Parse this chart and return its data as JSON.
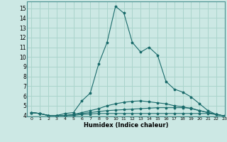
{
  "xlabel": "Humidex (Indice chaleur)",
  "ylabel": "",
  "bg_color": "#cce8e4",
  "grid_color": "#aad4cc",
  "line_color": "#1a6b6b",
  "xlim": [
    -0.5,
    23
  ],
  "ylim": [
    3.9,
    15.7
  ],
  "yticks": [
    4,
    5,
    6,
    7,
    8,
    9,
    10,
    11,
    12,
    13,
    14,
    15
  ],
  "xticks": [
    0,
    1,
    2,
    3,
    4,
    5,
    6,
    7,
    8,
    9,
    10,
    11,
    12,
    13,
    14,
    15,
    16,
    17,
    18,
    19,
    20,
    21,
    22,
    23
  ],
  "lines": [
    {
      "x": [
        0,
        1,
        2,
        3,
        4,
        5,
        6,
        7,
        8,
        9,
        10,
        11,
        12,
        13,
        14,
        15,
        16,
        17,
        18,
        19,
        20,
        21,
        22,
        23
      ],
      "y": [
        4.3,
        4.2,
        4.0,
        4.0,
        4.0,
        4.0,
        4.1,
        4.15,
        4.2,
        4.2,
        4.2,
        4.2,
        4.2,
        4.2,
        4.2,
        4.2,
        4.2,
        4.2,
        4.2,
        4.2,
        4.2,
        4.2,
        4.1,
        3.95
      ]
    },
    {
      "x": [
        0,
        1,
        2,
        3,
        4,
        5,
        6,
        7,
        8,
        9,
        10,
        11,
        12,
        13,
        14,
        15,
        16,
        17,
        18,
        19,
        20,
        21,
        22,
        23
      ],
      "y": [
        4.3,
        4.2,
        4.0,
        4.0,
        4.0,
        4.1,
        4.2,
        4.3,
        4.4,
        4.5,
        4.55,
        4.6,
        4.65,
        4.7,
        4.75,
        4.8,
        4.8,
        4.8,
        4.8,
        4.75,
        4.5,
        4.3,
        4.1,
        3.95
      ]
    },
    {
      "x": [
        0,
        1,
        2,
        3,
        4,
        5,
        6,
        7,
        8,
        9,
        10,
        11,
        12,
        13,
        14,
        15,
        16,
        17,
        18,
        19,
        20,
        21,
        22,
        23
      ],
      "y": [
        4.3,
        4.2,
        4.0,
        4.0,
        4.0,
        4.1,
        4.3,
        4.5,
        4.7,
        5.0,
        5.2,
        5.35,
        5.45,
        5.5,
        5.4,
        5.3,
        5.2,
        5.0,
        4.9,
        4.7,
        4.5,
        4.3,
        4.1,
        3.95
      ]
    },
    {
      "x": [
        0,
        1,
        2,
        3,
        4,
        5,
        6,
        7,
        8,
        9,
        10,
        11,
        12,
        13,
        14,
        15,
        16,
        17,
        18,
        19,
        20,
        21,
        22,
        23
      ],
      "y": [
        4.3,
        4.2,
        4.0,
        4.0,
        4.2,
        4.3,
        5.5,
        6.3,
        9.3,
        11.5,
        15.2,
        14.5,
        11.5,
        10.5,
        11.0,
        10.2,
        7.5,
        6.7,
        6.4,
        5.9,
        5.2,
        4.5,
        4.1,
        3.95
      ]
    }
  ]
}
